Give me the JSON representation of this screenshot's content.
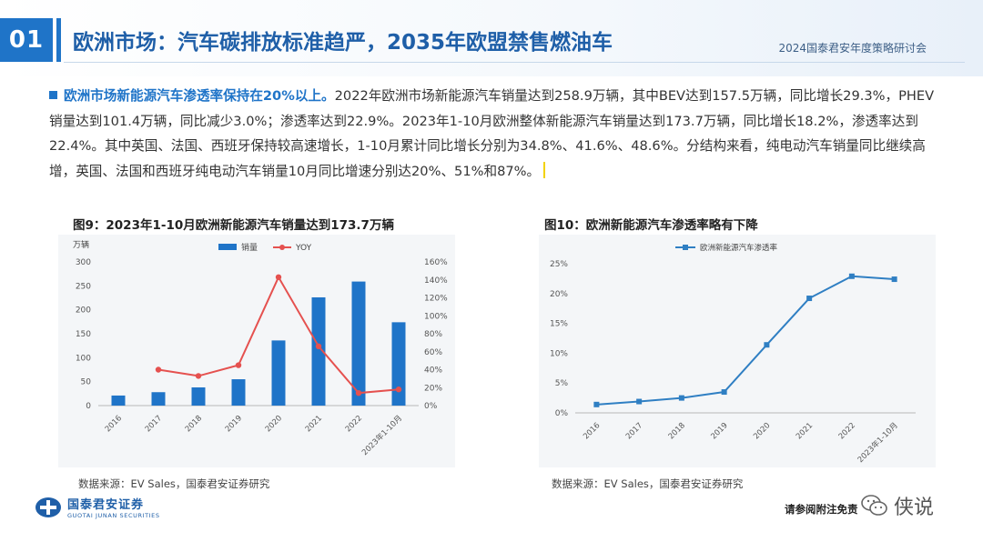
{
  "header": {
    "badge": "01",
    "title": "欧洲市场：汽车碳排放标准趋严，2035年欧盟禁售燃油车",
    "event": "2024国泰君安年度策略研讨会"
  },
  "body": {
    "highlight": "欧洲市场新能源汽车渗透率保持在20%以上。",
    "text": "2022年欧洲市场新能源汽车销量达到258.9万辆，其中BEV达到157.5万辆，同比增长29.3%，PHEV销量达到101.4万辆，同比减少3.0%；渗透率达到22.9%。2023年1-10月欧洲整体新能源汽车销量达到173.7万辆，同比增长18.2%，渗透率达到22.4%。其中英国、法国、西班牙保持较高速增长，1-10月累计同比增长分别为34.8%、41.6%、48.6%。分结构来看，纯电动汽车销量同比继续高增，英国、法国和西班牙纯电动汽车销量10月同比增速分别达20%、51%和87%。"
  },
  "charts": {
    "fig9_title": "图9：2023年1-10月欧洲新能源汽车销量达到173.7万辆",
    "fig10_title": "图10：欧洲新能源汽车渗透率略有下降",
    "fig9_source": "数据来源：EV Sales，国泰君安证券研究",
    "fig10_source": "数据来源：EV Sales，国泰君安证券研究"
  },
  "chart_data": [
    {
      "type": "bar",
      "categories": [
        "2016",
        "2017",
        "2018",
        "2019",
        "2020",
        "2021",
        "2022",
        "2023年1-10月"
      ],
      "unit_label": "万辆",
      "series": [
        {
          "name": "销量",
          "axis": "left",
          "kind": "bar",
          "color": "#1f74c8",
          "values": [
            21,
            28,
            38,
            55,
            136,
            226,
            259,
            174
          ]
        },
        {
          "name": "YOY",
          "axis": "right",
          "kind": "line",
          "color": "#e5514f",
          "values": [
            null,
            40,
            33,
            45,
            143,
            66,
            14,
            18
          ]
        }
      ],
      "ylim": [
        0,
        300
      ],
      "yticks": [
        0,
        50,
        100,
        150,
        200,
        250,
        300
      ],
      "y2lim": [
        0,
        160
      ],
      "y2ticks": [
        "0%",
        "20%",
        "40%",
        "60%",
        "80%",
        "100%",
        "120%",
        "140%",
        "160%"
      ],
      "legend": "top-center",
      "grid": false
    },
    {
      "type": "line",
      "categories": [
        "2016",
        "2017",
        "2018",
        "2019",
        "2020",
        "2021",
        "2022",
        "2023年1-10月"
      ],
      "series": [
        {
          "name": "欧洲新能源汽车渗透率",
          "color": "#2f7fc3",
          "values": [
            1.4,
            1.9,
            2.5,
            3.5,
            11.4,
            19.2,
            22.9,
            22.4
          ]
        }
      ],
      "ylim": [
        0,
        25
      ],
      "yticks": [
        "0%",
        "5%",
        "10%",
        "15%",
        "20%",
        "25%"
      ],
      "legend": "top-left",
      "grid": false
    }
  ],
  "footer": {
    "logo_cn": "国泰君安证券",
    "logo_en": "GUOTAI JUNAN SECURITIES",
    "disclaimer": "请参阅附注免责",
    "watermark": "侠说",
    "watermark_icon": "wechat-icon"
  },
  "colors": {
    "accent": "#1f74c8",
    "title": "#1f5fa8",
    "bar": "#1f74c8",
    "yoy": "#e5514f",
    "line": "#2f7fc3"
  }
}
